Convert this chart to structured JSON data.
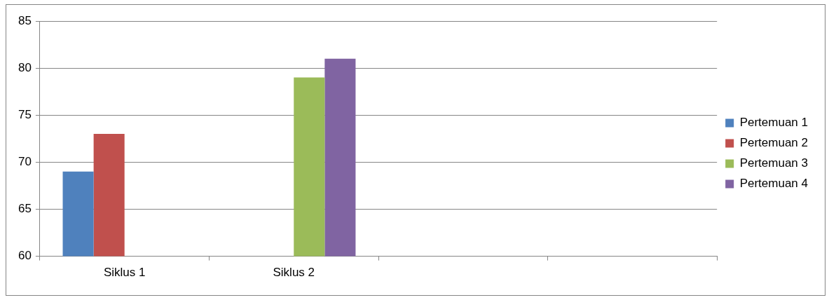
{
  "chart_data": {
    "type": "bar",
    "categories": [
      "Siklus 1",
      "Siklus 2",
      null,
      null
    ],
    "series": [
      {
        "name": "Pertemuan 1",
        "color": "#4f81bd",
        "values": [
          69,
          null,
          null,
          null
        ]
      },
      {
        "name": "Pertemuan 2",
        "color": "#c0504d",
        "values": [
          73,
          null,
          null,
          null
        ]
      },
      {
        "name": "Pertemuan 3",
        "color": "#9bbb59",
        "values": [
          null,
          79,
          null,
          null
        ]
      },
      {
        "name": "Pertemuan 4",
        "color": "#8064a2",
        "values": [
          null,
          81,
          null,
          null
        ]
      }
    ],
    "ylim": [
      60,
      85
    ],
    "yticks": [
      60,
      65,
      70,
      75,
      80,
      85
    ],
    "grid": "y",
    "legend": "right"
  }
}
